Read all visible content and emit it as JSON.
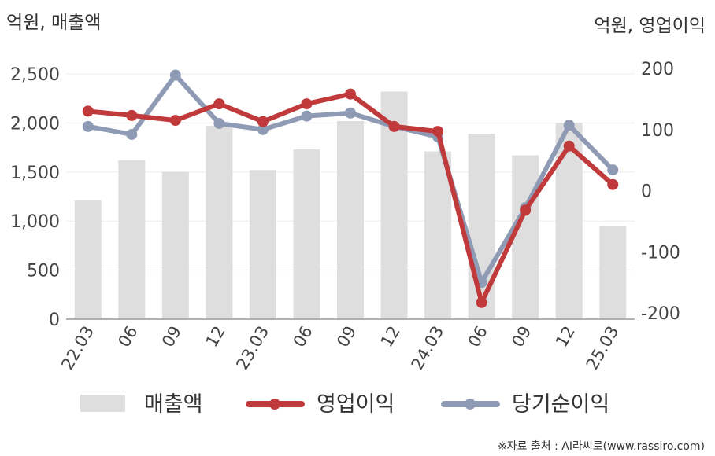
{
  "chart_data": {
    "type": "bar+line",
    "left_unit_label": "억원, 매출액",
    "right_unit_label": "억원, 영업이익",
    "categories": [
      "22.03",
      "06",
      "09",
      "12",
      "23.03",
      "06",
      "09",
      "12",
      "24.03",
      "06",
      "09",
      "12",
      "25.03"
    ],
    "left_axis": {
      "min": 0,
      "max": 2500,
      "ticks": [
        0,
        500,
        1000,
        1500,
        2000,
        2500
      ],
      "tick_labels": [
        "0",
        "500",
        "1,000",
        "1,500",
        "2,000",
        "2,500"
      ]
    },
    "right_axis": {
      "min": -200,
      "max": 200,
      "ticks": [
        -200,
        -100,
        0,
        100,
        200
      ],
      "tick_labels": [
        "-200",
        "-100",
        "0",
        "100",
        "200"
      ]
    },
    "series": [
      {
        "name": "매출액",
        "type": "bar",
        "axis": "left",
        "color": "#dedede",
        "values": [
          1210,
          1620,
          1500,
          1970,
          1520,
          1730,
          2020,
          2320,
          1710,
          1890,
          1670,
          2000,
          950
        ]
      },
      {
        "name": "영업이익",
        "type": "line",
        "axis": "right",
        "color": "#c0393b",
        "values": [
          130,
          123,
          115,
          142,
          113,
          142,
          158,
          105,
          97,
          -183,
          -32,
          73,
          10
        ]
      },
      {
        "name": "당기순이익",
        "type": "line",
        "axis": "right",
        "color": "#8f9bb5",
        "values": [
          105,
          92,
          189,
          110,
          100,
          122,
          127,
          105,
          88,
          -150,
          -28,
          107,
          34
        ]
      }
    ],
    "grid": "horizontal",
    "legend_position": "bottom",
    "source_note": "※자료 출처 : AI라씨로(www.rassiro.com)"
  }
}
